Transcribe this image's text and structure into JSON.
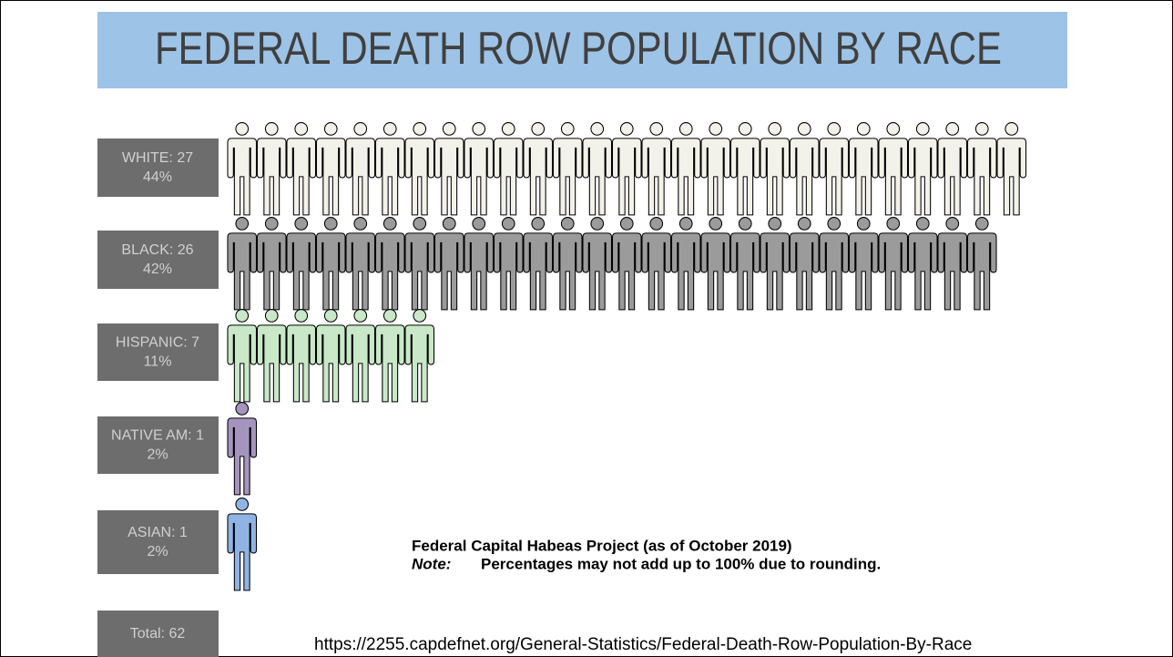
{
  "chart_data": {
    "type": "pictograph",
    "title": "FEDERAL DEATH ROW POPULATION BY RACE",
    "categories": [
      "WHITE: 27",
      "BLACK: 26",
      "HISPANIC: 7",
      "NATIVE AM: 1",
      "ASIAN: 1"
    ],
    "values": [
      27,
      26,
      7,
      1,
      1
    ],
    "percent_values": [
      44,
      42,
      11,
      2,
      2
    ],
    "percent_labels": [
      "44%",
      "42%",
      "11%",
      "2%",
      "2%"
    ],
    "colors": [
      "#f3f2ea",
      "#9b9b9b",
      "#c8e8c8",
      "#a594be",
      "#8fb4e4"
    ],
    "total_label": "Total: 62",
    "source": "Federal Capital Habeas Project (as of October 2019)",
    "note_label": "Note:",
    "note": "Percentages may not add up to 100% due to rounding.",
    "url": "https://2255.capdefnet.org/General-Statistics/Federal-Death-Row-Population-By-Race"
  }
}
